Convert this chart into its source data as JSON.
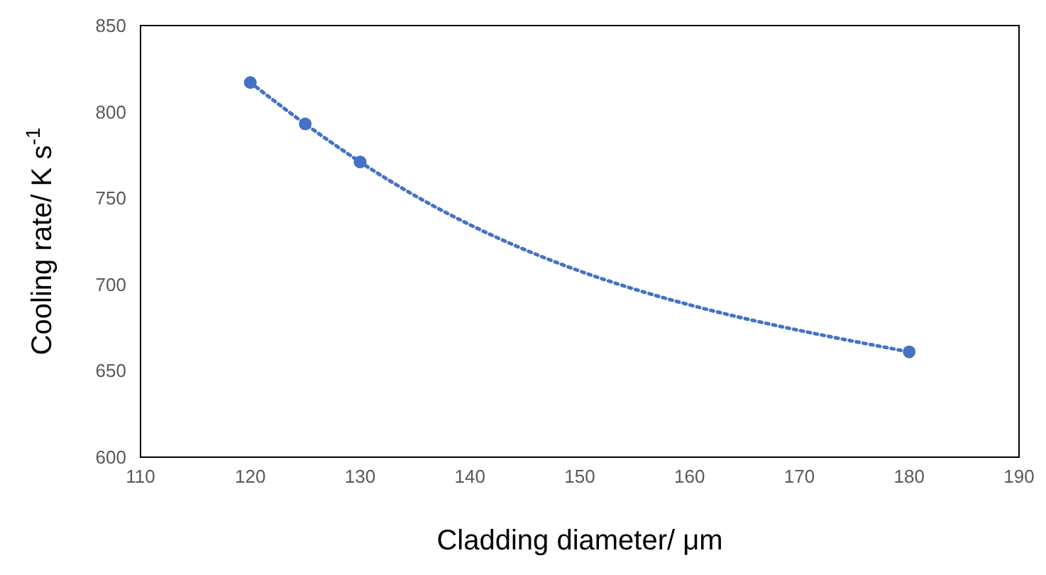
{
  "chart_data": {
    "type": "line",
    "xlabel": "Cladding diameter/ μm",
    "ylabel": "Cooling rate/ K s$^{-1}$",
    "x": [
      120,
      125,
      130,
      180
    ],
    "series": [
      {
        "color": "#4472c4",
        "values": [
          817,
          793,
          771,
          661
        ]
      }
    ],
    "xlim": [
      110,
      190
    ],
    "xticks": [
      110,
      120,
      130,
      140,
      150,
      160,
      170,
      180,
      190
    ],
    "ylim": [
      600,
      850
    ],
    "yticks": [
      600,
      650,
      700,
      750,
      800,
      850
    ],
    "grid": false,
    "marker": "circle",
    "line_style": "dotted"
  }
}
